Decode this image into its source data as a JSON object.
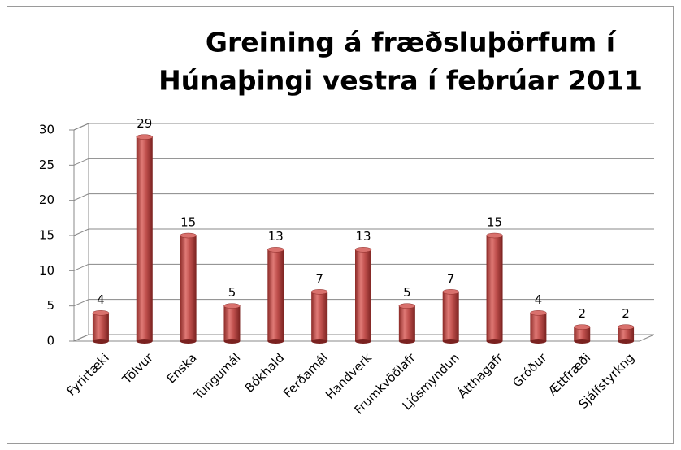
{
  "chart_data": {
    "type": "bar",
    "title": [
      "Greining á fræðsluþörfum í",
      "Húnaþingi vestra í febrúar 2011"
    ],
    "categories": [
      "Fyrirtæki",
      "Tölvur",
      "Enska",
      "Tungumál",
      "Bókhald",
      "Ferðamál",
      "Handverk",
      "Frumkvöðlafr",
      "Ljósmyndun",
      "Átthagafr",
      "Gróður",
      "Ættfræði",
      "Sjálfstyrkng"
    ],
    "values": [
      4,
      29,
      15,
      5,
      13,
      7,
      13,
      5,
      7,
      15,
      4,
      2,
      2
    ],
    "color": "#c0504d",
    "ylim": [
      0,
      30
    ],
    "yticks": [
      0,
      5,
      10,
      15,
      20,
      25,
      30
    ],
    "grid": true
  }
}
